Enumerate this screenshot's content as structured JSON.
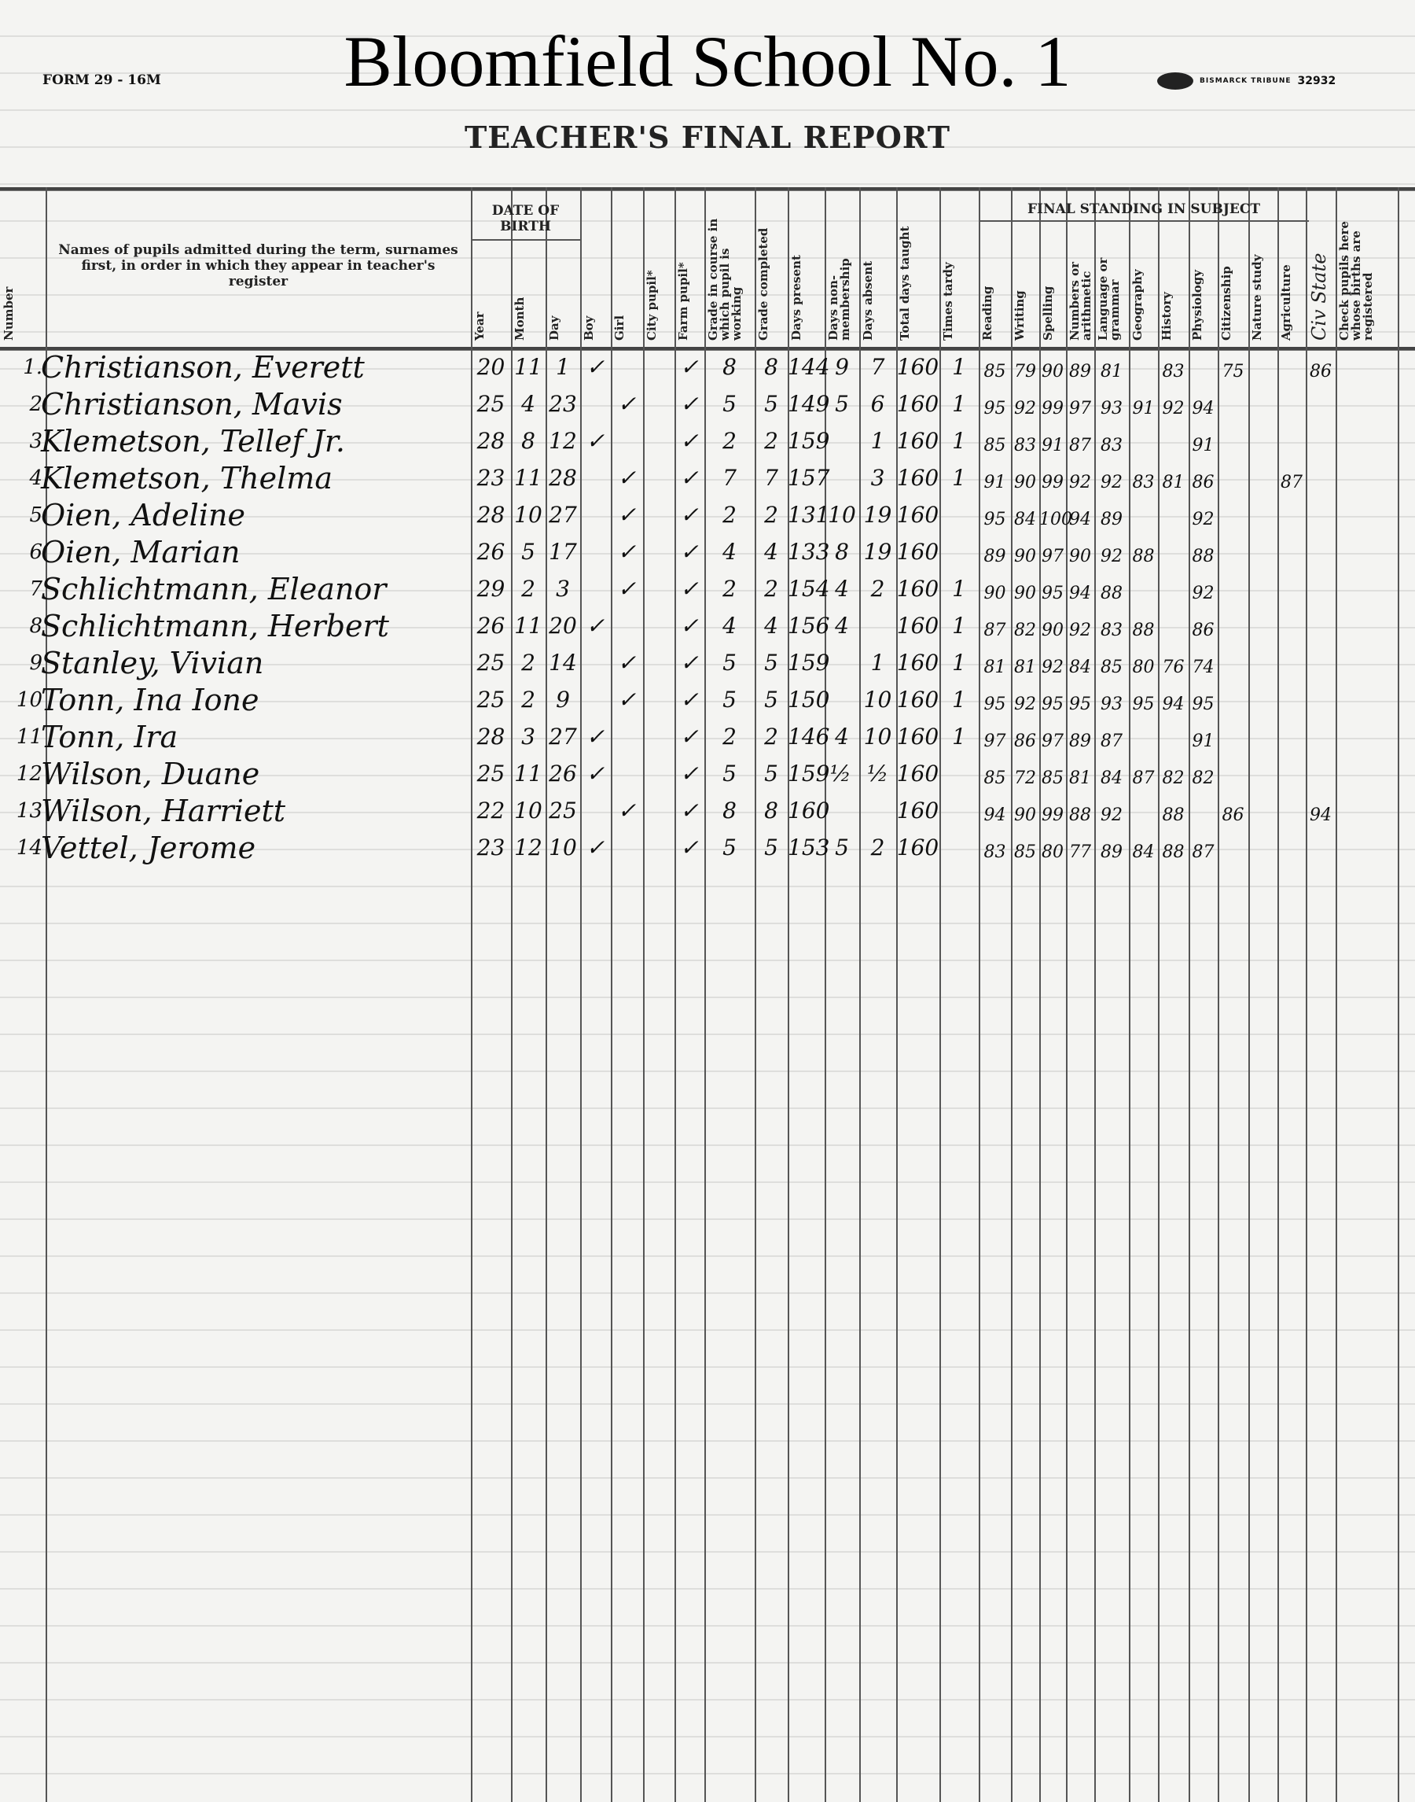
{
  "header": {
    "school": "Bloomfield School No. 1",
    "form_number": "FORM 29 - 16M",
    "printer": "BISMARCK TRIBUNE",
    "printer_number": "32932",
    "title": "TEACHER'S FINAL REPORT"
  },
  "table": {
    "group_date_of_birth": "DATE OF BIRTH",
    "group_final_standing": "FINAL STANDING IN SUBJECT",
    "columns": [
      "Number",
      "Names of pupils admitted during the term, surnames first, in order in which they appear in teacher's register",
      "Year",
      "Month",
      "Day",
      "Boy",
      "Girl",
      "City pupil*",
      "Farm pupil*",
      "Grade in course in which pupil is working",
      "Grade completed",
      "Days present",
      "Days non-membership",
      "Days absent",
      "Total days taught",
      "Times tardy",
      "Reading",
      "Writing",
      "Spelling",
      "Numbers or arithmetic",
      "Language or grammar",
      "Geography",
      "History",
      "Physiology",
      "Citizenship",
      "Nature study",
      "Agriculture",
      "Civ State",
      "Check pupils here whose births are registered"
    ],
    "rows": [
      [
        "1.",
        "Christianson, Everett",
        "20",
        "11",
        "1",
        "✓",
        "",
        "",
        "✓",
        "8",
        "8",
        "144",
        "9",
        "7",
        "160",
        "1",
        "85",
        "79",
        "90",
        "89",
        "81",
        "",
        "83",
        "",
        "75",
        "",
        "",
        "86",
        ""
      ],
      [
        "2",
        "Christianson, Mavis",
        "25",
        "4",
        "23",
        "",
        "✓",
        "",
        "✓",
        "5",
        "5",
        "149",
        "5",
        "6",
        "160",
        "1",
        "95",
        "92",
        "99",
        "97",
        "93",
        "91",
        "92",
        "94",
        "",
        "",
        "",
        "",
        ""
      ],
      [
        "3",
        "Klemetson, Tellef Jr.",
        "28",
        "8",
        "12",
        "✓",
        "",
        "",
        "✓",
        "2",
        "2",
        "159",
        "",
        "1",
        "160",
        "1",
        "85",
        "83",
        "91",
        "87",
        "83",
        "",
        "",
        "91",
        "",
        "",
        "",
        "",
        ""
      ],
      [
        "4",
        "Klemetson, Thelma",
        "23",
        "11",
        "28",
        "",
        "✓",
        "",
        "✓",
        "7",
        "7",
        "157",
        "",
        "3",
        "160",
        "1",
        "91",
        "90",
        "99",
        "92",
        "92",
        "83",
        "81",
        "86",
        "",
        "",
        "87",
        "",
        ""
      ],
      [
        "5",
        "Oien, Adeline",
        "28",
        "10",
        "27",
        "",
        "✓",
        "",
        "✓",
        "2",
        "2",
        "131",
        "10",
        "19",
        "160",
        "",
        "95",
        "84",
        "100",
        "94",
        "89",
        "",
        "",
        "92",
        "",
        "",
        "",
        "",
        ""
      ],
      [
        "6",
        "Oien, Marian",
        "26",
        "5",
        "17",
        "",
        "✓",
        "",
        "✓",
        "4",
        "4",
        "133",
        "8",
        "19",
        "160",
        "",
        "89",
        "90",
        "97",
        "90",
        "92",
        "88",
        "",
        "88",
        "",
        "",
        "",
        "",
        ""
      ],
      [
        "7",
        "Schlichtmann, Eleanor",
        "29",
        "2",
        "3",
        "",
        "✓",
        "",
        "✓",
        "2",
        "2",
        "154",
        "4",
        "2",
        "160",
        "1",
        "90",
        "90",
        "95",
        "94",
        "88",
        "",
        "",
        "92",
        "",
        "",
        "",
        "",
        ""
      ],
      [
        "8",
        "Schlichtmann, Herbert",
        "26",
        "11",
        "20",
        "✓",
        "",
        "",
        "✓",
        "4",
        "4",
        "156",
        "4",
        "",
        "160",
        "1",
        "87",
        "82",
        "90",
        "92",
        "83",
        "88",
        "",
        "86",
        "",
        "",
        "",
        "",
        ""
      ],
      [
        "9",
        "Stanley, Vivian",
        "25",
        "2",
        "14",
        "",
        "✓",
        "",
        "✓",
        "5",
        "5",
        "159",
        "",
        "1",
        "160",
        "1",
        "81",
        "81",
        "92",
        "84",
        "85",
        "80",
        "76",
        "74",
        "",
        "",
        "",
        "",
        ""
      ],
      [
        "10",
        "Tonn, Ina Ione",
        "25",
        "2",
        "9",
        "",
        "✓",
        "",
        "✓",
        "5",
        "5",
        "150",
        "",
        "10",
        "160",
        "1",
        "95",
        "92",
        "95",
        "95",
        "93",
        "95",
        "94",
        "95",
        "",
        "",
        "",
        "",
        ""
      ],
      [
        "11",
        "Tonn, Ira",
        "28",
        "3",
        "27",
        "✓",
        "",
        "",
        "✓",
        "2",
        "2",
        "146",
        "4",
        "10",
        "160",
        "1",
        "97",
        "86",
        "97",
        "89",
        "87",
        "",
        "",
        "91",
        "",
        "",
        "",
        "",
        ""
      ],
      [
        "12",
        "Wilson, Duane",
        "25",
        "11",
        "26",
        "✓",
        "",
        "",
        "✓",
        "5",
        "5",
        "159½",
        "",
        "½",
        "160",
        "",
        "85",
        "72",
        "85",
        "81",
        "84",
        "87",
        "82",
        "82",
        "",
        "",
        "",
        "",
        ""
      ],
      [
        "13",
        "Wilson, Harriett",
        "22",
        "10",
        "25",
        "",
        "✓",
        "",
        "✓",
        "8",
        "8",
        "160",
        "",
        "",
        "160",
        "",
        "94",
        "90",
        "99",
        "88",
        "92",
        "",
        "88",
        "",
        "86",
        "",
        "",
        "94",
        ""
      ],
      [
        "14",
        "Vettel, Jerome",
        "23",
        "12",
        "10",
        "✓",
        "",
        "",
        "✓",
        "5",
        "5",
        "153",
        "5",
        "2",
        "160",
        "",
        "83",
        "85",
        "80",
        "77",
        "89",
        "84",
        "88",
        "87",
        "",
        "",
        "",
        "",
        ""
      ]
    ]
  }
}
